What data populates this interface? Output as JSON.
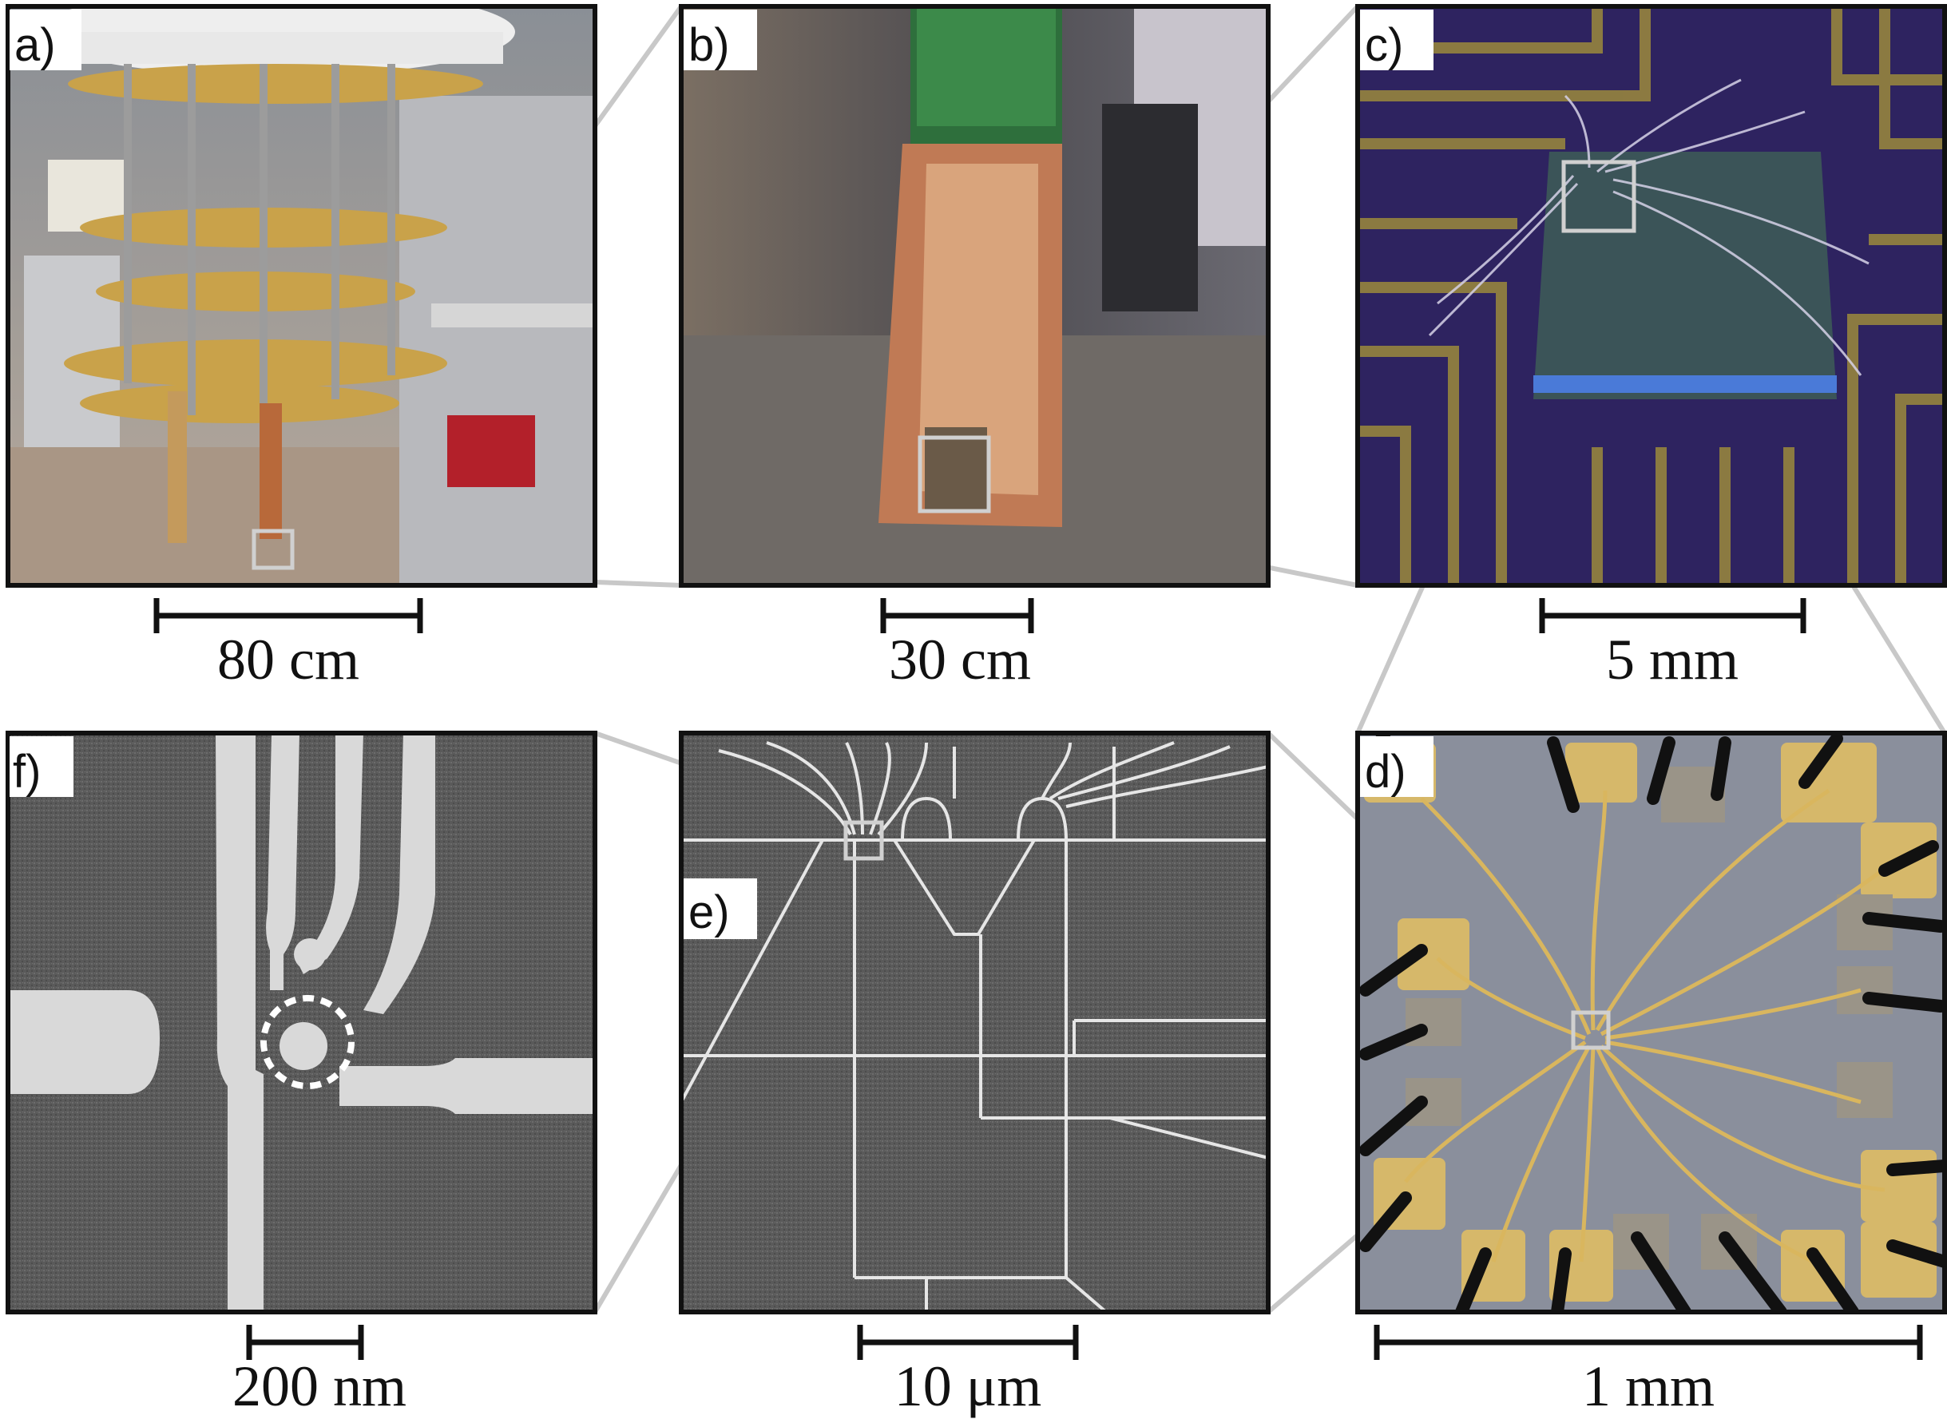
{
  "panels": {
    "a": {
      "label": "a)",
      "scale": "80 cm"
    },
    "b": {
      "label": "b)",
      "scale": "30 cm"
    },
    "c": {
      "label": "c)",
      "scale": "5 mm"
    },
    "d": {
      "label": "d)",
      "scale": "1 mm"
    },
    "e": {
      "label": "e)",
      "scale": "10 μm"
    },
    "f": {
      "label": "f)",
      "scale": "200 nm"
    }
  },
  "colors": {
    "frame": "#111111",
    "zoom_line": "#c8c8c8",
    "gold": "#c9a24a",
    "sem_bg": "#5e5e5e",
    "sem_line": "#e6e6e6",
    "chip_bg": "#8a8f9c",
    "purple_bg": "#3a2a6e"
  }
}
